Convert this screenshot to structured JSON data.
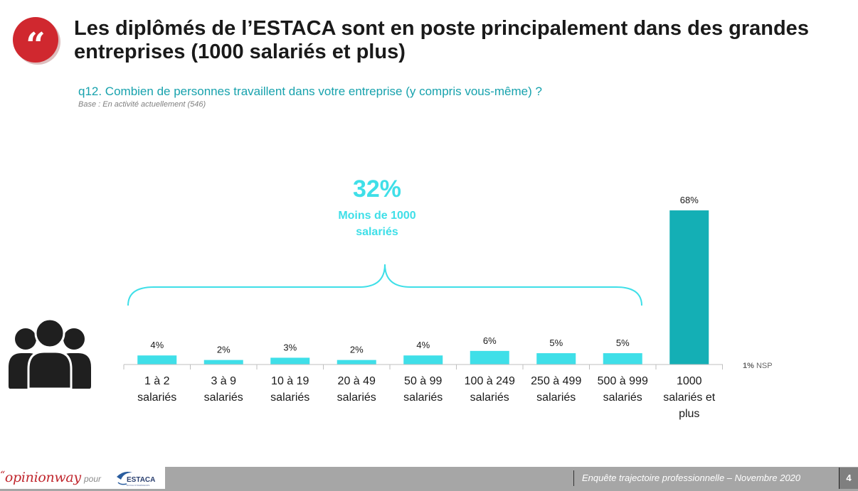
{
  "header": {
    "quote_glyph": "“",
    "title": "Les diplômés de l’ESTACA sont en poste principalement dans des grandes entreprises (1000 salariés et plus)",
    "question": "q12. Combien de personnes travaillent dans votre entreprise (y compris vous-même) ?",
    "base": "Base : En activité actuellement (546)"
  },
  "callout": {
    "percent": "32%",
    "label_line1": "Moins de 1000",
    "label_line2": "salariés"
  },
  "nsp": {
    "value": "1%",
    "label": "NSP"
  },
  "colors": {
    "accent": "#17a2ad",
    "light_bar": "#3fdfe8",
    "dark_bar": "#14afb5",
    "brand_red": "#d0282f",
    "footer_gray": "#a6a6a6"
  },
  "chart_data": {
    "type": "bar",
    "title": "",
    "xlabel": "",
    "ylabel": "",
    "ylim": [
      0,
      100
    ],
    "grid": false,
    "categories": [
      [
        "1 à 2",
        "salariés"
      ],
      [
        "3 à 9",
        "salariés"
      ],
      [
        "10 à 19",
        "salariés"
      ],
      [
        "20 à 49",
        "salariés"
      ],
      [
        "50 à 99",
        "salariés"
      ],
      [
        "100 à 249",
        "salariés"
      ],
      [
        "250 à 499",
        "salariés"
      ],
      [
        "500 à 999",
        "salariés"
      ],
      [
        "1000",
        "salariés et",
        "plus"
      ]
    ],
    "values": [
      4,
      2,
      3,
      2,
      4,
      6,
      5,
      5,
      68
    ],
    "value_labels": [
      "4%",
      "2%",
      "3%",
      "2%",
      "4%",
      "6%",
      "5%",
      "5%",
      "68%"
    ],
    "highlight_index": 8
  },
  "footer": {
    "brand_quote": "“",
    "brand": "opinionway",
    "pour": "pour",
    "estaca_logo_text": "ESTACA",
    "estaca_logo_sub": "ÉCOLE D'INGÉNIEURS",
    "survey": "Enquête trajectoire professionnelle – Novembre 2020",
    "page": "4"
  }
}
